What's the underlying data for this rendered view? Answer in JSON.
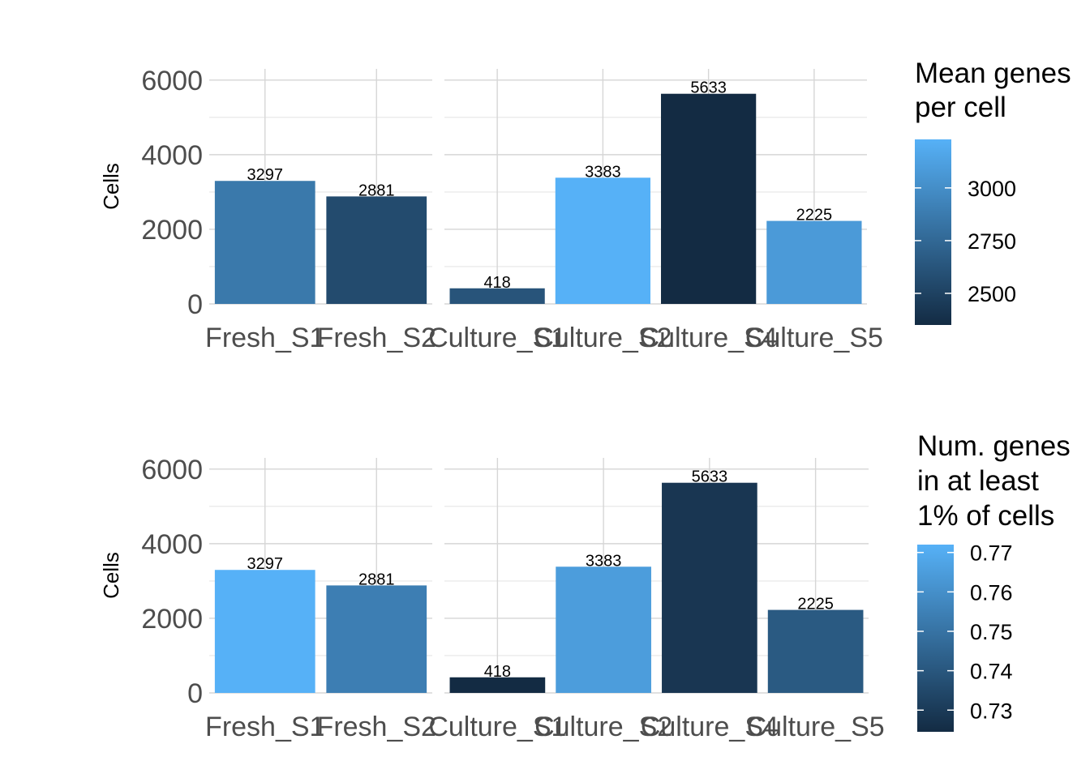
{
  "chart_data": [
    {
      "type": "bar",
      "ylabel": "Cells",
      "ylim": [
        0,
        6300
      ],
      "y_ticks": [
        0,
        2000,
        4000,
        6000
      ],
      "grid": true,
      "facets": [
        {
          "categories": [
            "Fresh_S1",
            "Fresh_S2"
          ],
          "values": [
            3297,
            2881
          ],
          "fill_values": [
            2860,
            2560
          ]
        },
        {
          "categories": [
            "Culture_S1",
            "Culture_S2",
            "Culture_S4",
            "Culture_S5"
          ],
          "values": [
            418,
            3383,
            5633,
            2225
          ],
          "fill_values": [
            2620,
            3230,
            2350,
            3080
          ]
        }
      ],
      "data_labels": [
        "3297",
        "2881",
        "418",
        "3383",
        "5633",
        "2225"
      ],
      "legend": {
        "title_lines": [
          "Mean genes",
          "per cell"
        ],
        "placement": "right",
        "min": 2350,
        "max": 3230,
        "ticks": [
          3000,
          2750,
          2500
        ],
        "color_low": "#132B43",
        "color_high": "#56B1F7"
      }
    },
    {
      "type": "bar",
      "ylabel": "Cells",
      "ylim": [
        0,
        6300
      ],
      "y_ticks": [
        0,
        2000,
        4000,
        6000
      ],
      "grid": true,
      "facets": [
        {
          "categories": [
            "Fresh_S1",
            "Fresh_S2"
          ],
          "values": [
            3297,
            2881
          ],
          "fill_values": [
            0.772,
            0.754
          ]
        },
        {
          "categories": [
            "Culture_S1",
            "Culture_S2",
            "Culture_S4",
            "Culture_S5"
          ],
          "values": [
            418,
            3383,
            5633,
            2225
          ],
          "fill_values": [
            0.7245,
            0.765,
            0.7285,
            0.741
          ]
        }
      ],
      "data_labels": [
        "3297",
        "2881",
        "418",
        "3383",
        "5633",
        "2225"
      ],
      "legend": {
        "title_lines": [
          "Num. genes",
          "in at least",
          "1% of cells"
        ],
        "placement": "right",
        "min": 0.7245,
        "max": 0.772,
        "ticks": [
          0.77,
          0.76,
          0.75,
          0.74,
          0.73
        ],
        "color_low": "#132B43",
        "color_high": "#56B1F7"
      }
    }
  ]
}
